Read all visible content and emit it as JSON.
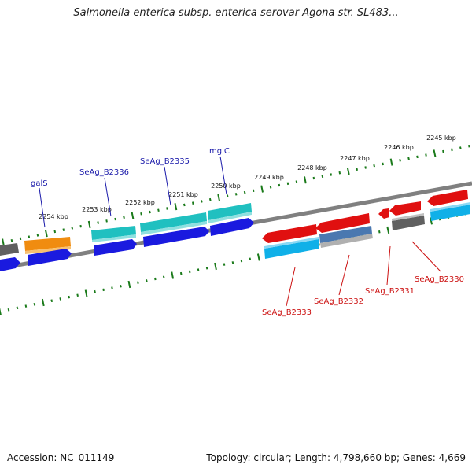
{
  "title": "Salmonella enterica subsp. enterica serovar Agona str. SL483...",
  "footer": {
    "accession": "Accession: NC_011149",
    "summary": "Topology: circular; Length: 4,798,660 bp; Genes: 4,669"
  },
  "kbp_labels": [
    "2245 kbp",
    "2246 kbp",
    "2247 kbp",
    "2248 kbp",
    "2249 kbp",
    "2250 kbp",
    "2251 kbp",
    "2252 kbp",
    "2253 kbp",
    "2254 kbp"
  ],
  "gene_labels_top": [
    "galS",
    "SeAg_B2336",
    "SeAg_B2335",
    "mglC"
  ],
  "gene_labels_bottom": [
    "SeAg_B2333",
    "SeAg_B2332",
    "SeAg_B2331",
    "SeAg_B2330"
  ],
  "colors": {
    "backbone": "#808080",
    "tick": "#1a7a1a",
    "top_label": "#1a1aaa",
    "bottom_label": "#cc1111",
    "cds_blue": "#1a1adf",
    "cds_teal": "#20c0c0",
    "cds_orange": "#f08c10",
    "cds_red": "#e01010",
    "cds_cyan": "#10b0e8",
    "cds_grey": "#606060",
    "cds_steel": "#4a78b0",
    "cds_lightgrey": "#b0b0b0"
  }
}
